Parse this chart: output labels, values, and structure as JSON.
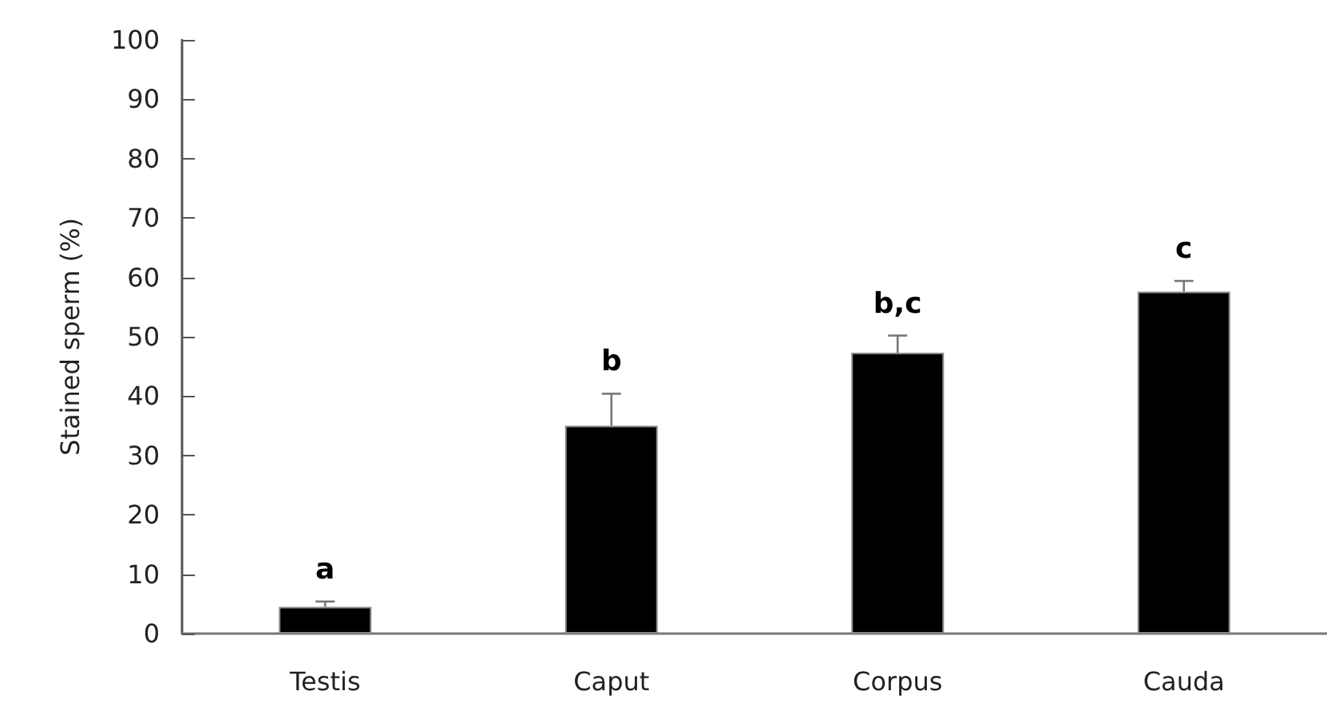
{
  "chart_data": {
    "type": "bar",
    "ylabel": "Stained sperm (%)",
    "categories": [
      "Testis",
      "Caput",
      "Corpus",
      "Cauda"
    ],
    "values": [
      4.5,
      35.0,
      47.3,
      57.6
    ],
    "errors": [
      [
        4.5,
        5.4
      ],
      [
        35.0,
        40.4
      ],
      [
        47.3,
        50.2
      ],
      [
        57.6,
        59.4
      ]
    ],
    "color": "#000000",
    "ylim": [
      0,
      100
    ],
    "yticks": [
      0,
      10,
      20,
      30,
      40,
      50,
      60,
      70,
      80,
      90,
      100
    ],
    "grid": false,
    "annotations": [
      "a",
      "b",
      "b,c",
      "c"
    ]
  }
}
